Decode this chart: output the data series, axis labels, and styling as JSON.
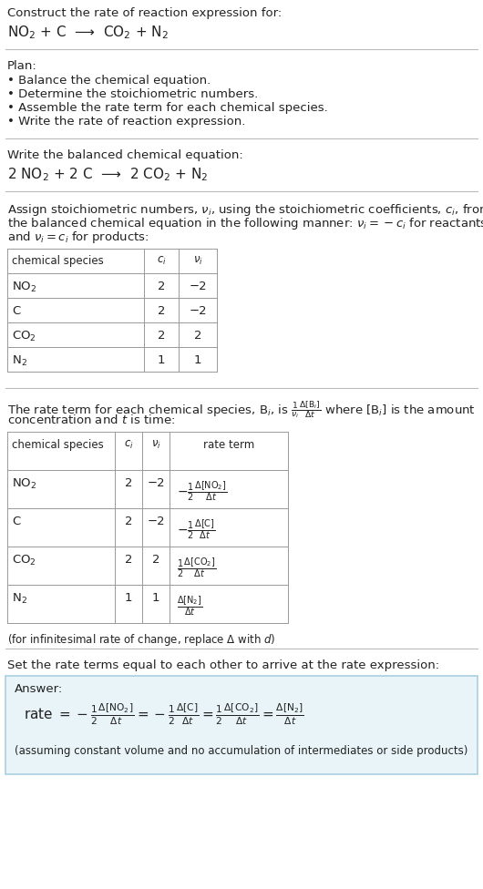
{
  "bg_color": "#ffffff",
  "text_color": "#222222",
  "title_line1": "Construct the rate of reaction expression for:",
  "reaction_unbalanced": "NO$_2$ + C  ⟶  CO$_2$ + N$_2$",
  "plan_header": "Plan:",
  "plan_items": [
    "• Balance the chemical equation.",
    "• Determine the stoichiometric numbers.",
    "• Assemble the rate term for each chemical species.",
    "• Write the rate of reaction expression."
  ],
  "balanced_header": "Write the balanced chemical equation:",
  "balanced_eq": "2 NO$_2$ + 2 C  ⟶  2 CO$_2$ + N$_2$",
  "assign_lines": [
    "Assign stoichiometric numbers, $\\nu_i$, using the stoichiometric coefficients, $c_i$, from",
    "the balanced chemical equation in the following manner: $\\nu_i = -c_i$ for reactants",
    "and $\\nu_i = c_i$ for products:"
  ],
  "table1_headers": [
    "chemical species",
    "$c_i$",
    "$\\nu_i$"
  ],
  "table1_rows": [
    [
      "NO$_2$",
      "2",
      "−2"
    ],
    [
      "C",
      "2",
      "−2"
    ],
    [
      "CO$_2$",
      "2",
      "2"
    ],
    [
      "N$_2$",
      "1",
      "1"
    ]
  ],
  "rate_lines": [
    "The rate term for each chemical species, B$_i$, is $\\frac{1}{\\nu_i}\\frac{\\Delta[\\mathrm{B}_i]}{\\Delta t}$ where [B$_i$] is the amount",
    "concentration and $t$ is time:"
  ],
  "table2_headers": [
    "chemical species",
    "$c_i$",
    "$\\nu_i$",
    "rate term"
  ],
  "table2_rows": [
    [
      "NO$_2$",
      "2",
      "−2",
      "$-\\frac{1}{2}\\frac{\\Delta[\\mathrm{NO_2}]}{\\Delta t}$"
    ],
    [
      "C",
      "2",
      "−2",
      "$-\\frac{1}{2}\\frac{\\Delta[\\mathrm{C}]}{\\Delta t}$"
    ],
    [
      "CO$_2$",
      "2",
      "2",
      "$\\frac{1}{2}\\frac{\\Delta[\\mathrm{CO_2}]}{\\Delta t}$"
    ],
    [
      "N$_2$",
      "1",
      "1",
      "$\\frac{\\Delta[\\mathrm{N_2}]}{\\Delta t}$"
    ]
  ],
  "infinitesimal_note": "(for infinitesimal rate of change, replace Δ with $d$)",
  "set_rate_text": "Set the rate terms equal to each other to arrive at the rate expression:",
  "answer_box_color": "#e8f4f8",
  "answer_border_color": "#a8cfe0",
  "answer_label": "Answer:",
  "answer_eq": "rate $= -\\frac{1}{2}\\frac{\\Delta[\\mathrm{NO_2}]}{\\Delta t} = -\\frac{1}{2}\\frac{\\Delta[\\mathrm{C}]}{\\Delta t} = \\frac{1}{2}\\frac{\\Delta[\\mathrm{CO_2}]}{\\Delta t} = \\frac{\\Delta[\\mathrm{N_2}]}{\\Delta t}$",
  "answer_note": "(assuming constant volume and no accumulation of intermediates or side products)",
  "fs": 9.5,
  "fs_small": 8.5,
  "fs_eq": 11.0,
  "line_color": "#bbbbbb",
  "grid_color": "#999999"
}
